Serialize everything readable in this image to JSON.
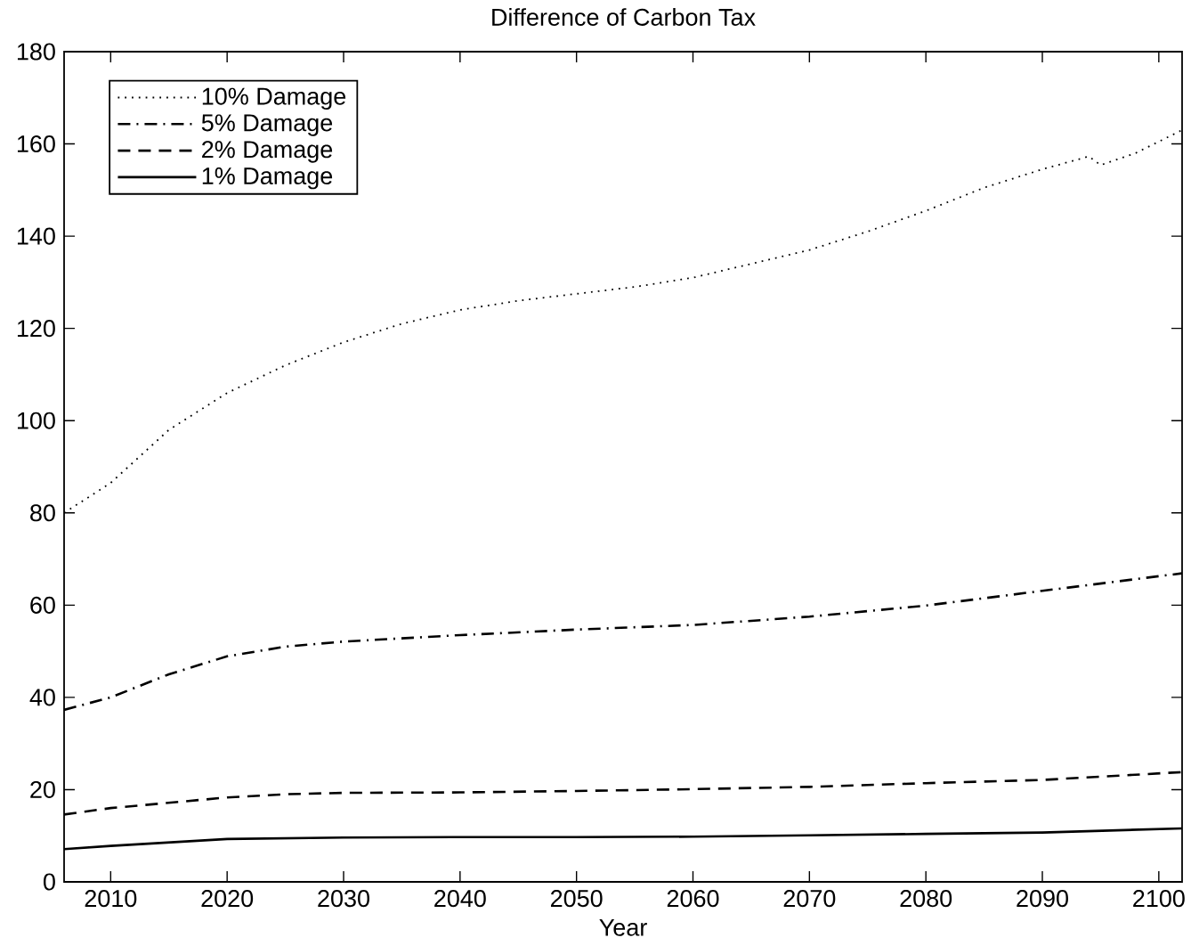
{
  "chart_data": {
    "type": "line",
    "title": "Difference of Carbon Tax",
    "xlabel": "Year",
    "xlim": [
      2006,
      2102
    ],
    "ylim": [
      0,
      180
    ],
    "xticks": [
      2010,
      2020,
      2030,
      2040,
      2050,
      2060,
      2070,
      2080,
      2090,
      2100
    ],
    "yticks": [
      0,
      20,
      40,
      60,
      80,
      100,
      120,
      140,
      160,
      180
    ],
    "legend": "top left",
    "series": [
      {
        "name": "10% Damage",
        "color": "#000000",
        "line_style": "dotted",
        "x": [
          2006,
          2010,
          2015,
          2020,
          2025,
          2030,
          2035,
          2040,
          2045,
          2050,
          2055,
          2060,
          2065,
          2070,
          2075,
          2080,
          2085,
          2090,
          2094,
          2095,
          2098,
          2102
        ],
        "values": [
          80,
          86.5,
          98,
          106,
          112,
          117,
          121,
          124,
          126,
          127.5,
          129,
          131,
          134,
          137,
          141,
          145.5,
          150.5,
          154.5,
          157.3,
          155.4,
          158,
          163
        ]
      },
      {
        "name": "5% Damage",
        "color": "#000000",
        "line_style": "dashdot",
        "x": [
          2006,
          2010,
          2015,
          2020,
          2025,
          2030,
          2040,
          2050,
          2060,
          2070,
          2080,
          2090,
          2102
        ],
        "values": [
          37.3,
          40,
          45,
          48.9,
          51,
          52.1,
          53.5,
          54.7,
          55.7,
          57.5,
          59.9,
          63.1,
          66.9
        ]
      },
      {
        "name": "2% Damage",
        "color": "#000000",
        "line_style": "dashed",
        "x": [
          2006,
          2010,
          2020,
          2025,
          2030,
          2040,
          2050,
          2060,
          2070,
          2080,
          2090,
          2102
        ],
        "values": [
          14.6,
          16,
          18.3,
          19,
          19.3,
          19.4,
          19.7,
          20.1,
          20.6,
          21.4,
          22.1,
          23.8
        ]
      },
      {
        "name": "1% Damage",
        "color": "#000000",
        "line_style": "solid",
        "x": [
          2006,
          2010,
          2020,
          2030,
          2040,
          2050,
          2060,
          2070,
          2080,
          2090,
          2102
        ],
        "values": [
          7.1,
          7.8,
          9.3,
          9.6,
          9.7,
          9.7,
          9.8,
          10.1,
          10.4,
          10.7,
          11.6
        ]
      }
    ]
  }
}
